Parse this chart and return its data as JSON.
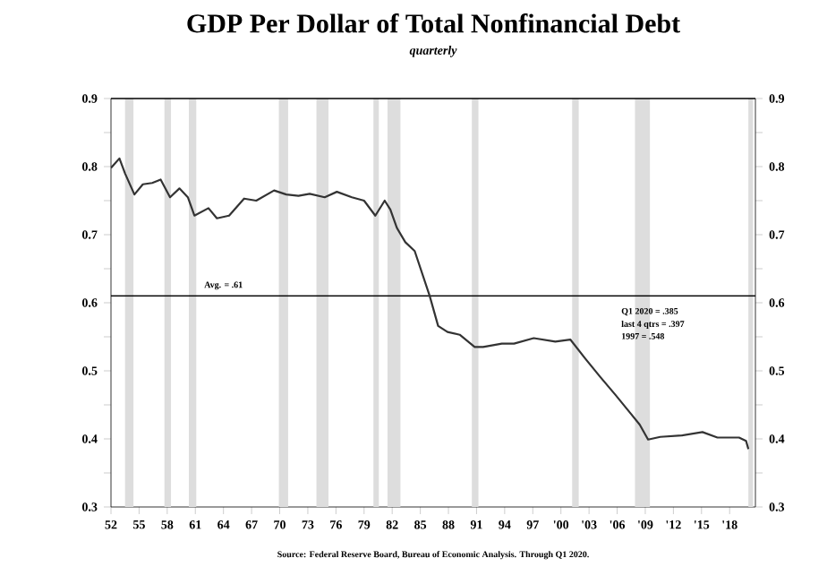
{
  "chart_data": {
    "type": "line",
    "title": "GDP Per Dollar of Total Nonfinancial Debt",
    "subtitle": "quarterly",
    "annotations": [
      "Q1 2020 = .385",
      "last 4 qtrs = .397",
      "1997 = .548",
      "Source:  Federal Reserve Board, Bureau of Economic Analysis.  Through Q1 2020."
    ],
    "series": [
      {
        "color": "#333333",
        "x": [
          1952,
          1952.9,
          1953.5,
          1954.5,
          1955.4,
          1956.4,
          1957.3,
          1958.3,
          1959.3,
          1960.2,
          1960.9,
          1962.4,
          1963.3,
          1964.6,
          1966.2,
          1967.5,
          1969.4,
          1970.7,
          1972,
          1973.2,
          1974.8,
          1976.1,
          1977.7,
          1979,
          1980.2,
          1981.2,
          1981.8,
          1982.5,
          1983.4,
          1984.4,
          1986,
          1986.9,
          1987.9,
          1989.2,
          1990.8,
          1991.7,
          1993.7,
          1995,
          1997.1,
          1999.4,
          2001,
          2002.6,
          2004.2,
          2005.8,
          2007.4,
          2008.4,
          2009.3,
          2010.6,
          2012.9,
          2015.1,
          2016.7,
          2019,
          2019.75,
          2020
        ],
        "values": [
          0.798,
          0.812,
          0.79,
          0.759,
          0.774,
          0.776,
          0.781,
          0.755,
          0.768,
          0.755,
          0.728,
          0.739,
          0.724,
          0.728,
          0.753,
          0.75,
          0.765,
          0.759,
          0.757,
          0.76,
          0.755,
          0.763,
          0.755,
          0.75,
          0.728,
          0.75,
          0.737,
          0.71,
          0.689,
          0.676,
          0.61,
          0.566,
          0.557,
          0.553,
          0.535,
          0.535,
          0.54,
          0.54,
          0.548,
          0.543,
          0.546,
          0.518,
          0.491,
          0.465,
          0.438,
          0.421,
          0.399,
          0.403,
          0.405,
          0.41,
          0.402,
          0.402,
          0.397,
          0.385
        ]
      }
    ],
    "xlim": [
      1952,
      2020.75
    ],
    "ylim": [
      0.3,
      0.9
    ],
    "xticks": [
      {
        "value": 1952,
        "label": "52"
      },
      {
        "value": 1955,
        "label": "55"
      },
      {
        "value": 1958,
        "label": "58"
      },
      {
        "value": 1961,
        "label": "61"
      },
      {
        "value": 1964,
        "label": "64"
      },
      {
        "value": 1967,
        "label": "67"
      },
      {
        "value": 1970,
        "label": "70"
      },
      {
        "value": 1973,
        "label": "73"
      },
      {
        "value": 1976,
        "label": "76"
      },
      {
        "value": 1979,
        "label": "79"
      },
      {
        "value": 1982,
        "label": "82"
      },
      {
        "value": 1985,
        "label": "85"
      },
      {
        "value": 1988,
        "label": "88"
      },
      {
        "value": 1991,
        "label": "91"
      },
      {
        "value": 1994,
        "label": "94"
      },
      {
        "value": 1997,
        "label": "97"
      },
      {
        "value": 2000,
        "label": "'00"
      },
      {
        "value": 2003,
        "label": "'03"
      },
      {
        "value": 2006,
        "label": "'06"
      },
      {
        "value": 2009,
        "label": "'09"
      },
      {
        "value": 2012,
        "label": "'12"
      },
      {
        "value": 2015,
        "label": "'15"
      },
      {
        "value": 2018,
        "label": "'18"
      }
    ],
    "yticks": [
      0.3,
      {
        "value": 0.35,
        "label": null
      },
      0.4,
      {
        "value": 0.45,
        "label": null
      },
      0.5,
      {
        "value": 0.55,
        "label": null
      },
      0.6,
      {
        "value": 0.65,
        "label": null
      },
      0.7,
      {
        "value": 0.75,
        "label": null
      },
      0.8,
      {
        "value": 0.85,
        "label": null
      },
      0.9
    ],
    "y2lim": [
      0.3,
      0.9
    ],
    "y2ticks": [
      0.3,
      {
        "value": 0.35,
        "label": null
      },
      0.4,
      {
        "value": 0.45,
        "label": null
      },
      0.5,
      {
        "value": 0.55,
        "label": null
      },
      0.6,
      {
        "value": 0.65,
        "label": null
      },
      0.7,
      {
        "value": 0.75,
        "label": null
      },
      0.8,
      {
        "value": 0.85,
        "label": null
      },
      0.9
    ],
    "ref_lines": [
      {
        "axis": "y",
        "value": 0.61,
        "label": "Avg. = .61",
        "color": "#000000"
      }
    ],
    "bands": [
      {
        "axis": "x",
        "from": 1953.5,
        "to": 1954.4,
        "color": "#dddddd"
      },
      {
        "axis": "x",
        "from": 1957.7,
        "to": 1958.4,
        "color": "#dddddd"
      },
      {
        "axis": "x",
        "from": 1960.3,
        "to": 1961.1,
        "color": "#dddddd"
      },
      {
        "axis": "x",
        "from": 1969.9,
        "to": 1970.9,
        "color": "#dddddd"
      },
      {
        "axis": "x",
        "from": 1973.9,
        "to": 1975.2,
        "color": "#dddddd"
      },
      {
        "axis": "x",
        "from": 1980.0,
        "to": 1980.6,
        "color": "#dddddd"
      },
      {
        "axis": "x",
        "from": 1981.5,
        "to": 1982.9,
        "color": "#dddddd"
      },
      {
        "axis": "x",
        "from": 1990.5,
        "to": 1991.2,
        "color": "#dddddd"
      },
      {
        "axis": "x",
        "from": 2001.2,
        "to": 2001.9,
        "color": "#dddddd"
      },
      {
        "axis": "x",
        "from": 2007.9,
        "to": 2009.5,
        "color": "#dddddd"
      },
      {
        "axis": "x",
        "from": 2020.0,
        "to": 2020.5,
        "color": "#dddddd"
      }
    ],
    "grid": false,
    "marker": "none",
    "line_style": "solid"
  }
}
